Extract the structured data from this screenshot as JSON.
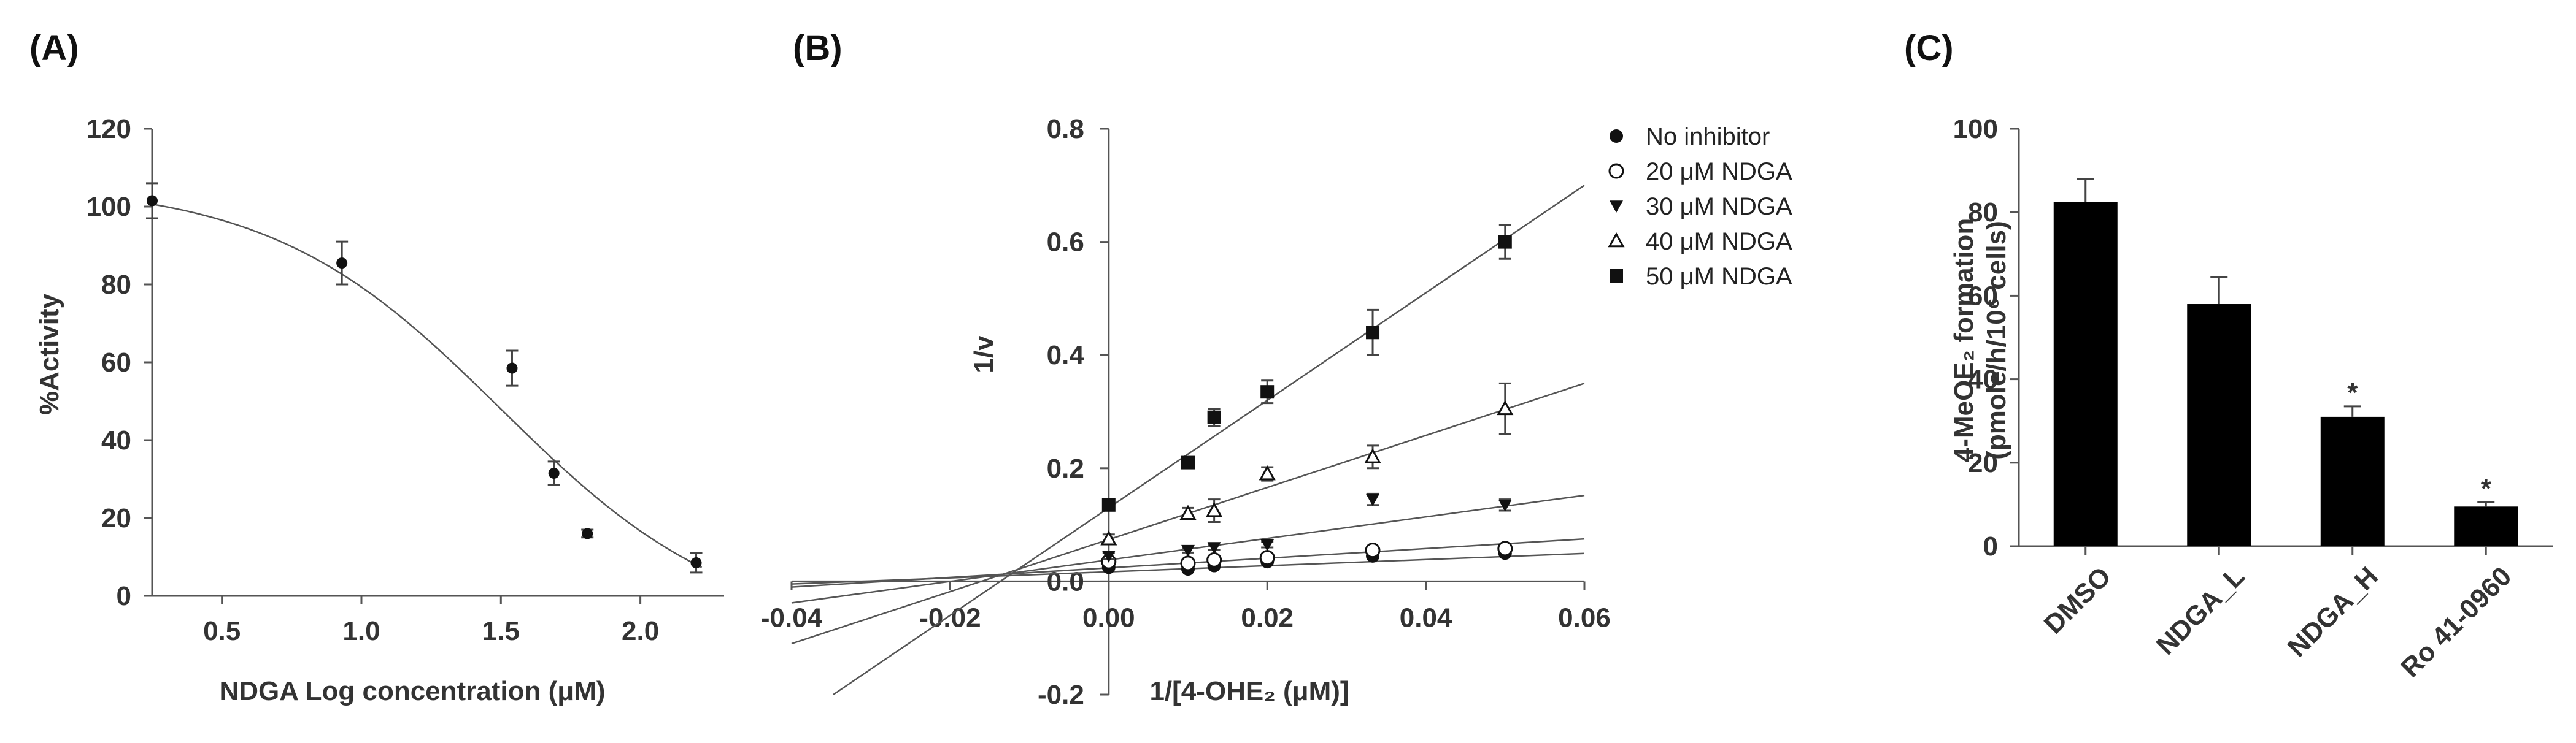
{
  "chart_data": [
    {
      "panel": "(A)",
      "type": "scatter",
      "xlabel": "NDGA Log concentration (μM)",
      "ylabel": "%Activity",
      "xlim": [
        0.25,
        2.3
      ],
      "ylim": [
        0,
        120
      ],
      "x_ticks": [
        0.5,
        1.0,
        1.5,
        2.0
      ],
      "x_tick_labels": [
        "0.5",
        "1.0",
        "1.5",
        "2.0"
      ],
      "y_ticks": [
        0,
        20,
        40,
        60,
        80,
        100,
        120
      ],
      "y_tick_labels": [
        "0",
        "20",
        "40",
        "60",
        "80",
        "100",
        "120"
      ],
      "points": [
        {
          "x": 0.25,
          "y": 101.5,
          "err": 4.5
        },
        {
          "x": 0.93,
          "y": 85.5,
          "err": 5.5
        },
        {
          "x": 1.54,
          "y": 58.5,
          "err": 4.5
        },
        {
          "x": 1.69,
          "y": 31.5,
          "err": 3.0
        },
        {
          "x": 1.81,
          "y": 16.0,
          "err": 1.0
        },
        {
          "x": 2.2,
          "y": 8.5,
          "err": 2.5
        }
      ],
      "fit": {
        "model": "sigmoid",
        "top": 106,
        "bottom": -10,
        "log_ic50": 1.5,
        "hill": 1.05
      }
    },
    {
      "panel": "(B)",
      "type": "scatter",
      "xlabel": "1/[4-OHE₂ (μM)]",
      "ylabel": "1/v",
      "xlim": [
        -0.04,
        0.06
      ],
      "ylim": [
        -0.2,
        0.8
      ],
      "x_ticks": [
        -0.04,
        -0.02,
        0.0,
        0.02,
        0.04,
        0.06
      ],
      "x_tick_labels": [
        "-0.04",
        "-0.02",
        "0.00",
        "0.02",
        "0.04",
        "0.06"
      ],
      "y_ticks": [
        -0.2,
        0.0,
        0.2,
        0.4,
        0.6,
        0.8
      ],
      "y_tick_labels": [
        "-0.2",
        "0.0",
        "0.2",
        "0.4",
        "0.6",
        "0.8"
      ],
      "series": [
        {
          "name": "No inhibitor",
          "marker": "filled-circle",
          "x": [
            0.0,
            0.01,
            0.0133,
            0.02,
            0.0333,
            0.05
          ],
          "y": [
            0.025,
            0.022,
            0.028,
            0.035,
            0.045,
            0.05
          ],
          "err": [
            0.004,
            0.003,
            0.003,
            0.003,
            0.004,
            0.004
          ],
          "line": {
            "slope": 0.54,
            "intercept": 0.017
          }
        },
        {
          "name": "20 μM NDGA",
          "marker": "open-circle",
          "x": [
            0.0,
            0.01,
            0.0133,
            0.02,
            0.0333,
            0.05
          ],
          "y": [
            0.035,
            0.032,
            0.038,
            0.042,
            0.055,
            0.058
          ],
          "err": [
            0.004,
            0.003,
            0.004,
            0.004,
            0.004,
            0.005
          ],
          "line": {
            "slope": 0.85,
            "intercept": 0.024
          }
        },
        {
          "name": "30 μM NDGA",
          "marker": "filled-triangle-down",
          "x": [
            0.0,
            0.01,
            0.0133,
            0.02,
            0.0333,
            0.05
          ],
          "y": [
            0.045,
            0.055,
            0.06,
            0.065,
            0.145,
            0.135
          ],
          "err": [
            0.005,
            0.004,
            0.004,
            0.005,
            0.01,
            0.01
          ],
          "line": {
            "slope": 1.9,
            "intercept": 0.038
          }
        },
        {
          "name": "40 μM NDGA",
          "marker": "open-triangle-up",
          "x": [
            0.0,
            0.01,
            0.0133,
            0.02,
            0.0333,
            0.05
          ],
          "y": [
            0.075,
            0.12,
            0.125,
            0.19,
            0.22,
            0.305
          ],
          "err": [
            0.008,
            0.01,
            0.02,
            0.012,
            0.02,
            0.045
          ],
          "line": {
            "slope": 4.6,
            "intercept": 0.074
          }
        },
        {
          "name": "50 μM NDGA",
          "marker": "filled-square",
          "x": [
            0.0,
            0.01,
            0.0133,
            0.02,
            0.0333,
            0.05
          ],
          "y": [
            0.135,
            0.21,
            0.29,
            0.335,
            0.44,
            0.6
          ],
          "err": [
            0.01,
            0.01,
            0.015,
            0.02,
            0.04,
            0.03
          ],
          "line": {
            "slope": 9.5,
            "intercept": 0.13
          }
        }
      ],
      "legend_position": "top-right"
    },
    {
      "panel": "(C)",
      "type": "bar",
      "ylabel_line1": "4-MeOE₂ formation",
      "ylabel_line2": "(pmole/h/10⁶ cells)",
      "ylim": [
        0,
        100
      ],
      "y_ticks": [
        0,
        20,
        40,
        60,
        80,
        100
      ],
      "y_tick_labels": [
        "0",
        "20",
        "40",
        "60",
        "80",
        "100"
      ],
      "categories": [
        "DMSO",
        "NDGA_L",
        "NDGA_H",
        "Ro 41-0960"
      ],
      "values": [
        82.5,
        58.0,
        31.0,
        9.5
      ],
      "errors": [
        5.5,
        6.5,
        2.5,
        1.0
      ],
      "significance": [
        "",
        "",
        "*",
        "*"
      ]
    }
  ]
}
